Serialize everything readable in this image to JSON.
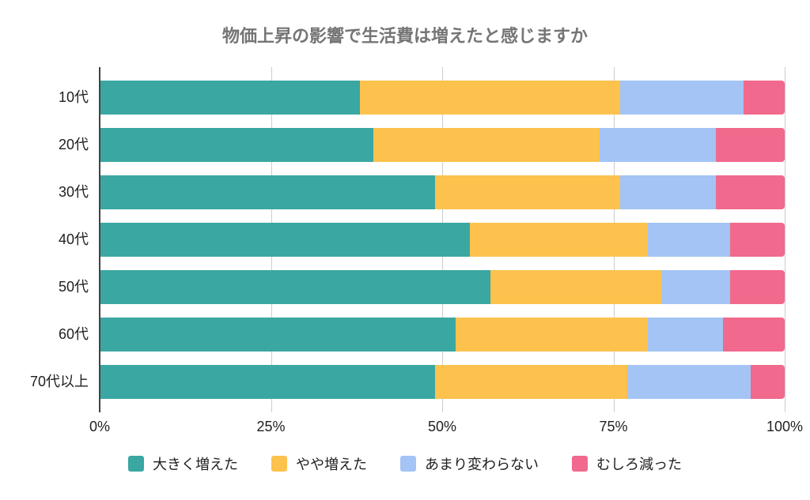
{
  "chart_data": {
    "type": "bar",
    "stacked": true,
    "orientation": "horizontal",
    "title": "物価上昇の影響で生活費は増えたと感じますか",
    "categories": [
      "10代",
      "20代",
      "30代",
      "40代",
      "50代",
      "60代",
      "70代以上"
    ],
    "series": [
      {
        "name": "大きく増えた",
        "color": "#3AA7A2",
        "values": [
          38,
          40,
          49,
          54,
          57,
          52,
          49
        ]
      },
      {
        "name": "やや増えた",
        "color": "#FCC24D",
        "values": [
          38,
          33,
          27,
          26,
          25,
          28,
          28
        ]
      },
      {
        "name": "あまり変わらない",
        "color": "#A3C4F5",
        "values": [
          18,
          17,
          14,
          12,
          10,
          11,
          18
        ]
      },
      {
        "name": "むしろ減った",
        "color": "#F1698C",
        "values": [
          6,
          10,
          10,
          8,
          8,
          9,
          5
        ]
      }
    ],
    "x_ticks": [
      {
        "label": "0%",
        "value": 0
      },
      {
        "label": "25%",
        "value": 25
      },
      {
        "label": "50%",
        "value": 50
      },
      {
        "label": "75%",
        "value": 75
      },
      {
        "label": "100%",
        "value": 100
      }
    ],
    "xlim": [
      0,
      100
    ],
    "grid": true,
    "legend_position": "bottom"
  },
  "colors": {
    "title": "#757575",
    "axis_line": "#424242",
    "gridline": "#CCCCCC",
    "tick_label": "#212121",
    "background": "#FFFFFF"
  }
}
